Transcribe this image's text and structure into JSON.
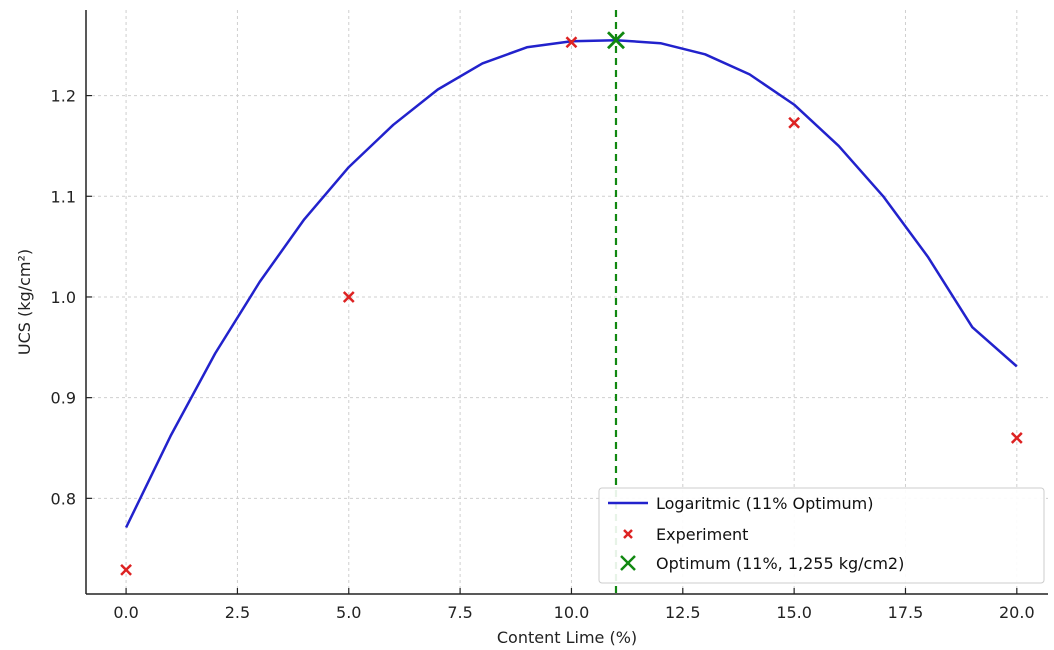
{
  "chart_data": {
    "type": "line",
    "xlabel": "Content Lime (%)",
    "ylabel": "UCS (kg/cm²)",
    "xlim": [
      -0.9,
      20.7
    ],
    "ylim": [
      0.705,
      1.285
    ],
    "x_ticks": [
      0.0,
      2.5,
      5.0,
      7.5,
      10.0,
      12.5,
      15.0,
      17.5,
      20.0
    ],
    "x_tick_labels": [
      "0.0",
      "2.5",
      "5.0",
      "7.5",
      "10.0",
      "12.5",
      "15.0",
      "17.5",
      "20.0"
    ],
    "y_ticks": [
      0.8,
      0.9,
      1.0,
      1.1,
      1.2
    ],
    "y_tick_labels": [
      "0.8",
      "0.9",
      "1.0",
      "1.1",
      "1.2"
    ],
    "grid": true,
    "legend_position": "bottom-right",
    "series": [
      {
        "name": "Logaritmic (11% Optimum)",
        "kind": "line",
        "color": "#2222cc",
        "x": [
          0,
          1,
          2,
          3,
          4,
          5,
          6,
          7,
          8,
          9,
          10,
          11,
          12,
          13,
          14,
          15,
          16,
          17,
          18,
          19,
          20
        ],
        "y": [
          0.771,
          0.862,
          0.944,
          1.015,
          1.077,
          1.129,
          1.171,
          1.206,
          1.232,
          1.248,
          1.254,
          1.255,
          1.252,
          1.241,
          1.221,
          1.191,
          1.15,
          1.1,
          1.04,
          0.97,
          0.931
        ]
      },
      {
        "name": "Experiment",
        "kind": "scatter",
        "color": "#dd2222",
        "x": [
          0,
          5,
          10,
          15,
          20
        ],
        "y": [
          0.729,
          1.0,
          1.253,
          1.173,
          0.86
        ]
      },
      {
        "name": "Optimum (11%, 1,255 kg/cm2)",
        "kind": "scatter",
        "color": "#118811",
        "x": [
          11
        ],
        "y": [
          1.255
        ]
      }
    ],
    "vline": {
      "x": 11,
      "color": "#118811",
      "style": "dashed"
    }
  }
}
